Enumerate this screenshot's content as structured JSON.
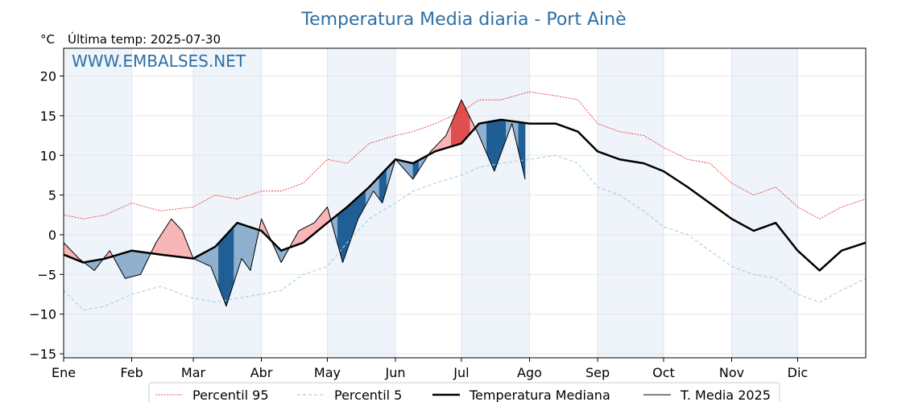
{
  "chart_data": {
    "type": "line",
    "title": "Temperatura Media diaria - Port Ainè",
    "unit_label": "°C",
    "last_temp_label": "Última temp: 2025-07-30",
    "watermark": "WWW.EMBALSES.NET",
    "ylim": [
      -15.5,
      23.5
    ],
    "yticks": [
      20,
      15,
      10,
      5,
      0,
      -5,
      -10,
      -15
    ],
    "ytick_labels": [
      "20",
      "15",
      "10",
      "5",
      "0",
      "−5",
      "−10",
      "−15"
    ],
    "months": [
      "Ene",
      "Feb",
      "Mar",
      "Abr",
      "May",
      "Jun",
      "Jul",
      "Ago",
      "Sep",
      "Oct",
      "Nov",
      "Dic"
    ],
    "month_start_days": [
      1,
      32,
      60,
      91,
      121,
      152,
      182,
      213,
      244,
      274,
      305,
      335
    ],
    "xlim": [
      1,
      366
    ],
    "grid": true,
    "legend_placement": "bottom-center",
    "colors": {
      "p95": "#e8231f",
      "p5": "#a7d4e0",
      "median": "#000000",
      "actual": "#000000",
      "above_fill": "#f8b6b6",
      "above_strong": "#e04f4f",
      "below_fill": "#8fb0cf",
      "below_strong": "#1f5f95",
      "band": "#eef4fa",
      "title": "#2e6fa3"
    },
    "series": [
      {
        "name": "Percentil 95",
        "x": [
          1,
          10,
          20,
          32,
          45,
          60,
          70,
          80,
          91,
          100,
          110,
          121,
          130,
          140,
          152,
          160,
          170,
          182,
          190,
          200,
          213,
          225,
          235,
          244,
          254,
          265,
          274,
          285,
          295,
          305,
          315,
          325,
          335,
          345,
          355,
          366
        ],
        "y": [
          2.5,
          2.0,
          2.5,
          4.0,
          3.0,
          3.5,
          5.0,
          4.5,
          5.5,
          5.5,
          6.5,
          9.5,
          9.0,
          11.5,
          12.5,
          13.0,
          14.0,
          15.5,
          17.0,
          17.0,
          18.0,
          17.5,
          17.0,
          14.0,
          13.0,
          12.5,
          11.0,
          9.5,
          9.0,
          6.5,
          5.0,
          6.0,
          3.5,
          2.0,
          3.5,
          4.5
        ]
      },
      {
        "name": "Percentil 5",
        "x": [
          1,
          10,
          20,
          32,
          45,
          60,
          70,
          80,
          91,
          100,
          110,
          121,
          130,
          140,
          152,
          160,
          170,
          182,
          190,
          200,
          213,
          225,
          235,
          244,
          254,
          265,
          274,
          285,
          295,
          305,
          315,
          325,
          335,
          345,
          355,
          366
        ],
        "y": [
          -7.0,
          -9.5,
          -9.0,
          -7.5,
          -6.5,
          -8.0,
          -8.5,
          -8.0,
          -7.5,
          -7.0,
          -5.0,
          -4.0,
          -1.0,
          2.0,
          4.0,
          5.5,
          6.5,
          7.5,
          8.5,
          9.0,
          9.5,
          10.0,
          9.0,
          6.0,
          5.0,
          3.0,
          1.0,
          0.0,
          -2.0,
          -4.0,
          -5.0,
          -5.5,
          -7.5,
          -8.5,
          -7.0,
          -5.5
        ]
      },
      {
        "name": "Temperatura Mediana",
        "x": [
          1,
          10,
          20,
          32,
          45,
          60,
          70,
          80,
          91,
          100,
          110,
          121,
          130,
          140,
          152,
          160,
          170,
          182,
          190,
          200,
          213,
          225,
          235,
          244,
          254,
          265,
          274,
          285,
          295,
          305,
          315,
          325,
          335,
          345,
          355,
          366
        ],
        "y": [
          -2.5,
          -3.5,
          -3.0,
          -2.0,
          -2.5,
          -3.0,
          -1.5,
          1.5,
          0.5,
          -2.0,
          -1.0,
          1.5,
          3.5,
          6.0,
          9.5,
          9.0,
          10.5,
          11.5,
          14.0,
          14.5,
          14.0,
          14.0,
          13.0,
          10.5,
          9.5,
          9.0,
          8.0,
          6.0,
          4.0,
          2.0,
          0.5,
          1.5,
          -2.0,
          -4.5,
          -2.0,
          -1.0
        ]
      },
      {
        "name": "T. Media 2025",
        "x": [
          1,
          8,
          15,
          22,
          29,
          36,
          43,
          50,
          55,
          60,
          68,
          75,
          82,
          86,
          91,
          100,
          108,
          115,
          121,
          128,
          135,
          142,
          146,
          152,
          160,
          168,
          175,
          182,
          190,
          197,
          205,
          211
        ],
        "y": [
          -1.0,
          -3.0,
          -4.5,
          -2.0,
          -5.5,
          -5.0,
          -1.0,
          2.0,
          0.5,
          -3.0,
          -4.0,
          -9.0,
          -3.0,
          -4.5,
          2.0,
          -3.5,
          0.5,
          1.5,
          3.5,
          -3.5,
          2.0,
          5.5,
          4.0,
          9.5,
          7.0,
          10.5,
          12.5,
          17.0,
          12.5,
          8.0,
          14.0,
          7.0
        ]
      }
    ]
  }
}
